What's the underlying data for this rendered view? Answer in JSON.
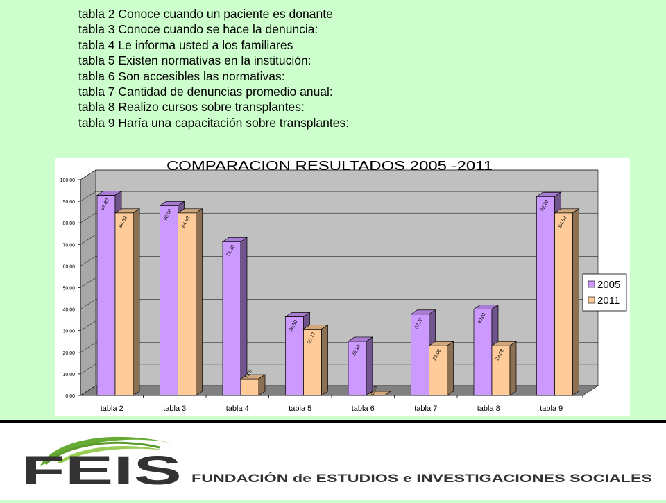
{
  "slide": {
    "lines": [
      "tabla 2 Conoce cuando un paciente es donante",
      "tabla 3 Conoce cuando se hace la denuncia:",
      "tabla 4 Le informa usted a los familiares",
      "tabla 5 Existen normativas en la institución:",
      "tabla 6 Son accesibles las normativas:",
      "tabla 7 Cantidad de denuncias promedio anual:",
      "tabla 8 Realizo cursos sobre transplantes:",
      "tabla 9 Haría una capacitación sobre transplantes:"
    ]
  },
  "chart_data": {
    "type": "bar",
    "title": "COMPARACION RESULTADOS 2005 -2011",
    "categories": [
      "tabla 2",
      "tabla 3",
      "tabla 4",
      "tabla 5",
      "tabla 6",
      "tabla 7",
      "tabla 8",
      "tabla 9"
    ],
    "series": [
      {
        "name": "2005",
        "values": [
          92.8,
          88.0,
          71.3,
          36.5,
          25.1,
          37.7,
          40.01,
          92.2
        ],
        "labels": [
          "92,80",
          "88,00",
          "71,30",
          "36,50",
          "25,10",
          "37,70",
          "40,01",
          "92,20"
        ],
        "color": "#cc99ff"
      },
      {
        "name": "2011",
        "values": [
          84.62,
          84.62,
          7.69,
          30.77,
          0.0,
          23.08,
          23.08,
          84.62
        ],
        "labels": [
          "84,62",
          "84,62",
          "7,69",
          "30,77",
          "0,00",
          "23,08",
          "23,08",
          "84,62"
        ],
        "color": "#ffcc99"
      }
    ],
    "yticks": [
      "0,00",
      "10,00",
      "20,00",
      "30,00",
      "40,00",
      "50,00",
      "60,00",
      "70,00",
      "80,00",
      "90,00",
      "100,00"
    ],
    "ylim": [
      0,
      100
    ],
    "legend_position": "right",
    "grid": true,
    "chart_style": "3d-clustered-column"
  },
  "footer": {
    "logo_text": "FEIS",
    "org_name": "FUNDACIÓN de ESTUDIOS e INVESTIGACIONES SOCIALES"
  },
  "colors": {
    "background": "#ccffcc",
    "plot_wall": "#c0c0c0",
    "floor": "#808080",
    "series_2005": "#cc99ff",
    "series_2011": "#ffcc99",
    "logo_dark": "#333333",
    "logo_green": "#66aa33"
  }
}
